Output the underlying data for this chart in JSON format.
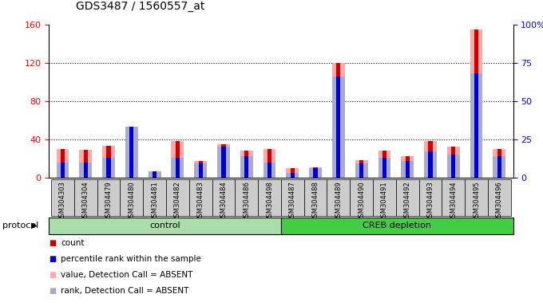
{
  "title": "GDS3487 / 1560557_at",
  "samples": [
    "GSM304303",
    "GSM304304",
    "GSM304479",
    "GSM304480",
    "GSM304481",
    "GSM304482",
    "GSM304483",
    "GSM304484",
    "GSM304486",
    "GSM304498",
    "GSM304487",
    "GSM304488",
    "GSM304489",
    "GSM304490",
    "GSM304491",
    "GSM304492",
    "GSM304493",
    "GSM304494",
    "GSM304495",
    "GSM304496"
  ],
  "count_values": [
    30,
    29,
    33,
    47,
    6,
    38,
    17,
    35,
    28,
    30,
    10,
    11,
    120,
    18,
    28,
    22,
    38,
    32,
    155,
    30
  ],
  "rank_values": [
    10,
    10,
    13,
    33,
    4,
    13,
    9,
    20,
    14,
    10,
    3,
    6,
    66,
    9,
    13,
    11,
    17,
    15,
    68,
    14
  ],
  "absent_value_values": [
    30,
    29,
    33,
    47,
    6,
    38,
    17,
    35,
    28,
    30,
    10,
    11,
    120,
    18,
    28,
    22,
    38,
    32,
    155,
    30
  ],
  "absent_rank_values": [
    10,
    10,
    13,
    33,
    4,
    13,
    9,
    20,
    14,
    10,
    3,
    6,
    66,
    9,
    13,
    11,
    17,
    15,
    68,
    14
  ],
  "control_count": 10,
  "creb_count": 10,
  "control_label": "control",
  "creb_label": "CREB depletion",
  "protocol_label": "protocol",
  "ylim_left": [
    0,
    160
  ],
  "ylim_right": [
    0,
    100
  ],
  "yticks_left": [
    0,
    40,
    80,
    120,
    160
  ],
  "yticks_right": [
    0,
    25,
    50,
    75,
    100
  ],
  "color_count": "#cc0000",
  "color_rank": "#0000cc",
  "color_absent_value": "#ffaaaa",
  "color_absent_rank": "#aaaacc",
  "bg_plot": "#ffffff",
  "bg_sample_box": "#cccccc",
  "bg_control": "#aaddaa",
  "bg_creb": "#44cc44",
  "legend_items": [
    {
      "label": "count",
      "color": "#cc0000"
    },
    {
      "label": "percentile rank within the sample",
      "color": "#0000cc"
    },
    {
      "label": "value, Detection Call = ABSENT",
      "color": "#ffaaaa"
    },
    {
      "label": "rank, Detection Call = ABSENT",
      "color": "#aaaacc"
    }
  ],
  "grid_color": "black",
  "grid_linestyle": "dotted",
  "grid_linewidth": 0.8
}
